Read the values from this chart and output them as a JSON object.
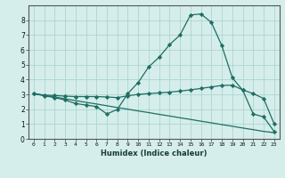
{
  "xlabel": "Humidex (Indice chaleur)",
  "background_color": "#d5eeeb",
  "grid_color": "#aed4cf",
  "line_color": "#1e6e64",
  "xlim": [
    -0.5,
    23.5
  ],
  "ylim": [
    0,
    9
  ],
  "xticks": [
    0,
    1,
    2,
    3,
    4,
    5,
    6,
    7,
    8,
    9,
    10,
    11,
    12,
    13,
    14,
    15,
    16,
    17,
    18,
    19,
    20,
    21,
    22,
    23
  ],
  "yticks": [
    0,
    1,
    2,
    3,
    4,
    5,
    6,
    7,
    8
  ],
  "series1_x": [
    0,
    1,
    2,
    3,
    4,
    5,
    6,
    7,
    8,
    9,
    10,
    11,
    12,
    13,
    14,
    15,
    16,
    17,
    18,
    19,
    20,
    21,
    22,
    23
  ],
  "series1_y": [
    3.05,
    2.9,
    2.78,
    2.62,
    2.38,
    2.28,
    2.18,
    1.68,
    1.98,
    3.05,
    3.8,
    4.85,
    5.5,
    6.35,
    7.0,
    8.35,
    8.42,
    7.85,
    6.28,
    4.12,
    3.28,
    1.68,
    1.48,
    0.5
  ],
  "series2_x": [
    0,
    1,
    2,
    3,
    4,
    5,
    6,
    7,
    8,
    9,
    10,
    11,
    12,
    13,
    14,
    15,
    16,
    17,
    18,
    19,
    20,
    21,
    22,
    23
  ],
  "series2_y": [
    3.05,
    2.95,
    2.92,
    2.88,
    2.85,
    2.85,
    2.85,
    2.82,
    2.78,
    2.9,
    3.0,
    3.05,
    3.1,
    3.15,
    3.22,
    3.3,
    3.4,
    3.5,
    3.6,
    3.62,
    3.3,
    3.05,
    2.72,
    1.02
  ],
  "series3_x": [
    0,
    1,
    2,
    3,
    4,
    5,
    6,
    7,
    8,
    9,
    10,
    11,
    12,
    13,
    14,
    15,
    16,
    17,
    18,
    19,
    20,
    21,
    22,
    23
  ],
  "series3_y": [
    3.05,
    2.93,
    2.82,
    2.7,
    2.58,
    2.46,
    2.35,
    2.23,
    2.11,
    2.0,
    1.88,
    1.77,
    1.65,
    1.54,
    1.42,
    1.31,
    1.19,
    1.08,
    0.96,
    0.85,
    0.73,
    0.62,
    0.5,
    0.42
  ]
}
